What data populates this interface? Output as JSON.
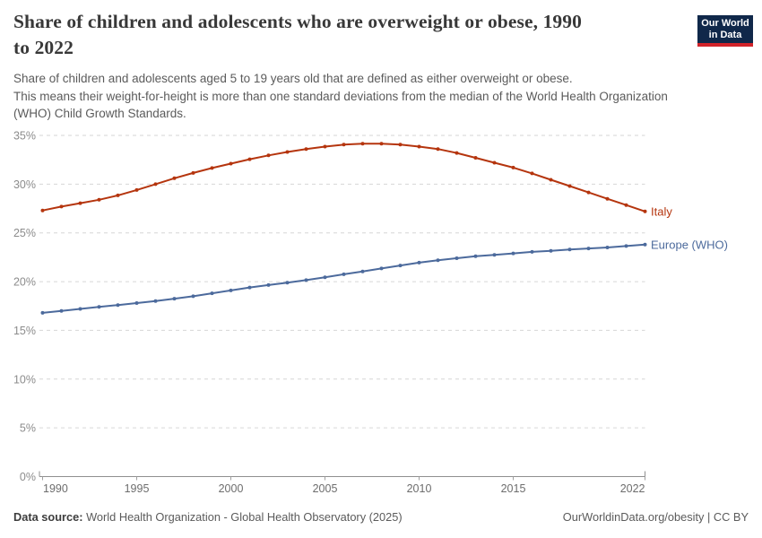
{
  "header": {
    "title_lines": [
      "Share of children and adolescents who are overweight or obese, 1990",
      "to 2022"
    ],
    "subtitle_lines": [
      "Share of children and adolescents aged 5 to 19 years old that are defined as either overweight or obese.",
      "This means their weight-for-height is more than one standard deviations from the median of the World Health Organization",
      "(WHO) Child Growth Standards."
    ],
    "logo": {
      "line1": "Our World",
      "line2": "in Data",
      "bg_color": "#10284a",
      "accent_color": "#d1232a"
    }
  },
  "chart_data": {
    "type": "line",
    "title": "Share of children and adolescents who are overweight or obese, 1990 to 2022",
    "x": [
      1990,
      1991,
      1992,
      1993,
      1994,
      1995,
      1996,
      1997,
      1998,
      1999,
      2000,
      2001,
      2002,
      2003,
      2004,
      2005,
      2006,
      2007,
      2008,
      2009,
      2010,
      2011,
      2012,
      2013,
      2014,
      2015,
      2016,
      2017,
      2018,
      2019,
      2020,
      2021,
      2022
    ],
    "series": [
      {
        "name": "Italy",
        "color": "#b5350e",
        "values": [
          27.3,
          27.7,
          28.05,
          28.4,
          28.85,
          29.4,
          30.0,
          30.6,
          31.15,
          31.65,
          32.1,
          32.55,
          32.95,
          33.3,
          33.6,
          33.85,
          34.05,
          34.15,
          34.15,
          34.05,
          33.85,
          33.6,
          33.2,
          32.7,
          32.2,
          31.7,
          31.1,
          30.45,
          29.8,
          29.15,
          28.5,
          27.85,
          27.2
        ]
      },
      {
        "name": "Europe (WHO)",
        "color": "#4c6a9c",
        "values": [
          16.8,
          17.0,
          17.2,
          17.4,
          17.6,
          17.8,
          18.0,
          18.25,
          18.5,
          18.8,
          19.1,
          19.4,
          19.65,
          19.9,
          20.15,
          20.45,
          20.75,
          21.05,
          21.35,
          21.65,
          21.95,
          22.2,
          22.4,
          22.6,
          22.75,
          22.9,
          23.05,
          23.15,
          23.3,
          23.4,
          23.5,
          23.65,
          23.8
        ]
      }
    ],
    "ylim": [
      0,
      35
    ],
    "yticks": [
      0,
      5,
      10,
      15,
      20,
      25,
      30,
      35
    ],
    "ytick_suffix": "%",
    "xticks": [
      1990,
      1995,
      2000,
      2005,
      2010,
      2015,
      2022
    ],
    "grid": "horizontal-dashed",
    "legend": "line-end-labels",
    "xlabel": "",
    "ylabel": ""
  },
  "footer": {
    "datasource_label": "Data source:",
    "datasource_text": " World Health Organization - Global Health Observatory (2025)",
    "license_text": "OurWorldinData.org/obesity | CC BY"
  }
}
